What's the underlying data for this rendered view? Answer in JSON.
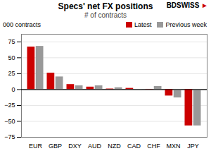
{
  "chart_data": {
    "type": "bar",
    "title": "Specs' net FX positions",
    "subtitle": "# of contracts",
    "ylabel": "000 contracts",
    "categories": [
      "EUR",
      "GBP",
      "DXY",
      "AUD",
      "NZD",
      "CAD",
      "CHF",
      "MXN",
      "JPY"
    ],
    "series": [
      {
        "name": "Latest",
        "color": "#cc0000",
        "values": [
          67,
          26,
          8,
          4,
          1,
          2,
          0.5,
          -10,
          -57
        ]
      },
      {
        "name": "Previous week",
        "color": "#999999",
        "values": [
          68,
          20,
          6,
          6,
          3,
          -1,
          5,
          -13,
          -57
        ]
      }
    ],
    "ylim": [
      -75,
      87
    ],
    "yticks": [
      -75,
      -50,
      -25,
      0,
      25,
      50,
      75
    ],
    "grid": true,
    "legend": "upper right",
    "annotations": [
      {
        "text": "BDSWISS"
      },
      {
        "text": "►",
        "color": "#cc0000"
      }
    ]
  }
}
